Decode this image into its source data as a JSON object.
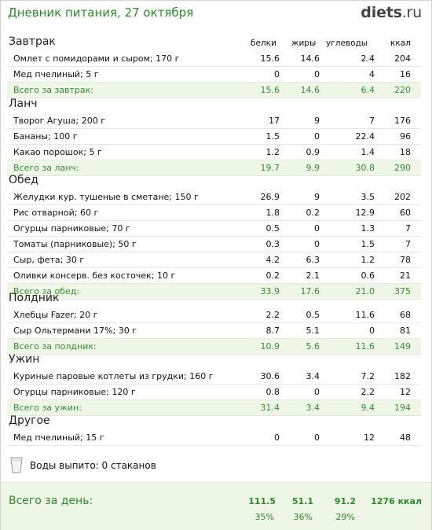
{
  "header": {
    "title": "Дневник питания, 27 октября",
    "logo_bold": "diets",
    "logo_light": ".ru"
  },
  "columns": {
    "protein": "белки",
    "fat": "жиры",
    "carbs": "углеводы",
    "kcal": "ккал"
  },
  "meals": [
    {
      "name": "Завтрак",
      "items": [
        {
          "name": "Омлет с помидорами и сыром; 170 г",
          "protein": "15.6",
          "fat": "14.6",
          "carbs": "2.4",
          "kcal": "204"
        },
        {
          "name": "Мед пчелиный; 5 г",
          "protein": "0",
          "fat": "0",
          "carbs": "4",
          "kcal": "16"
        }
      ],
      "total": {
        "label": "Всего за завтрак:",
        "protein": "15.6",
        "fat": "14.6",
        "carbs": "6.4",
        "kcal": "220"
      }
    },
    {
      "name": "Ланч",
      "items": [
        {
          "name": "Творог Агуша; 200 г",
          "protein": "17",
          "fat": "9",
          "carbs": "7",
          "kcal": "176"
        },
        {
          "name": "Бананы; 100 г",
          "protein": "1.5",
          "fat": "0",
          "carbs": "22.4",
          "kcal": "96"
        },
        {
          "name": "Какао порошок; 5 г",
          "protein": "1.2",
          "fat": "0.9",
          "carbs": "1.4",
          "kcal": "18"
        }
      ],
      "total": {
        "label": "Всего за ланч:",
        "protein": "19.7",
        "fat": "9.9",
        "carbs": "30.8",
        "kcal": "290"
      }
    },
    {
      "name": "Обед",
      "items": [
        {
          "name": "Желудки кур. тушеные в сметане; 150 г",
          "protein": "26.9",
          "fat": "9",
          "carbs": "3.5",
          "kcal": "202"
        },
        {
          "name": "Рис отварной; 60 г",
          "protein": "1.8",
          "fat": "0.2",
          "carbs": "12.9",
          "kcal": "60"
        },
        {
          "name": "Огурцы парниковые; 70 г",
          "protein": "0.5",
          "fat": "0",
          "carbs": "1.3",
          "kcal": "7"
        },
        {
          "name": "Томаты (парниковые); 50 г",
          "protein": "0.3",
          "fat": "0",
          "carbs": "1.5",
          "kcal": "7"
        },
        {
          "name": "Сыр, фета; 30 г",
          "protein": "4.2",
          "fat": "6.3",
          "carbs": "1.2",
          "kcal": "78"
        },
        {
          "name": "Оливки консерв. без косточек; 10 г",
          "protein": "0.2",
          "fat": "2.1",
          "carbs": "0.6",
          "kcal": "21"
        }
      ],
      "total": {
        "label": "Всего за обед:",
        "protein": "33.9",
        "fat": "17.6",
        "carbs": "21.0",
        "kcal": "375"
      }
    },
    {
      "name": "Полдник",
      "items": [
        {
          "name": "Хлебцы Fazer; 20 г",
          "protein": "2.2",
          "fat": "0.5",
          "carbs": "11.6",
          "kcal": "68"
        },
        {
          "name": "Сыр Ольтермани 17%; 30 г",
          "protein": "8.7",
          "fat": "5.1",
          "carbs": "0",
          "kcal": "81"
        }
      ],
      "total": {
        "label": "Всего за полдник:",
        "protein": "10.9",
        "fat": "5.6",
        "carbs": "11.6",
        "kcal": "149"
      }
    },
    {
      "name": "Ужин",
      "items": [
        {
          "name": "Куриные паровые котлеты из грудки; 160 г",
          "protein": "30.6",
          "fat": "3.4",
          "carbs": "7.2",
          "kcal": "182"
        },
        {
          "name": "Огурцы парниковые; 120 г",
          "protein": "0.8",
          "fat": "0",
          "carbs": "2.2",
          "kcal": "12"
        }
      ],
      "total": {
        "label": "Всего за ужин:",
        "protein": "31.4",
        "fat": "3.4",
        "carbs": "9.4",
        "kcal": "194"
      }
    },
    {
      "name": "Другое",
      "items": [
        {
          "name": "Мед пчелиный; 15 г",
          "protein": "0",
          "fat": "0",
          "carbs": "12",
          "kcal": "48"
        }
      ],
      "total": null
    }
  ],
  "water": {
    "text": "Воды выпито: 0 стаканов",
    "icon": "glass-icon"
  },
  "day_total": {
    "label": "Всего за день:",
    "protein": "111.5",
    "fat": "51.1",
    "carbs": "91.2",
    "kcal": "1276 ккал",
    "protein_pct": "35%",
    "fat_pct": "36%",
    "carbs_pct": "29%"
  },
  "colors": {
    "accent_green": "#2d8a2d",
    "total_bg": "#eef6e6",
    "border": "#e6e6e6"
  }
}
